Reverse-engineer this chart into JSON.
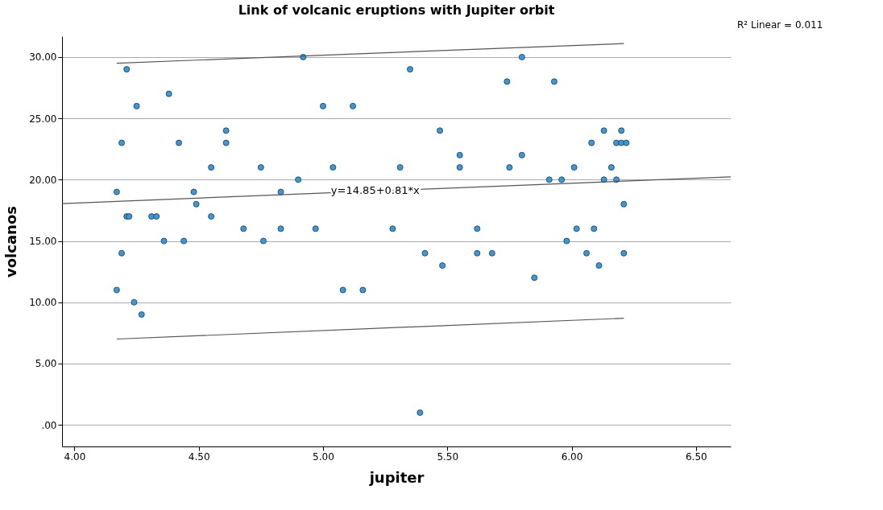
{
  "chart_data": {
    "type": "scatter",
    "title": "Link of volcanic eruptions with Jupiter orbit",
    "xlabel": "jupiter",
    "ylabel": "volcanos",
    "xlim": [
      3.95,
      6.64
    ],
    "ylim": [
      -1.76,
      31.7
    ],
    "xticks": [
      {
        "value": 4,
        "label": "4.00"
      },
      {
        "value": 4.5,
        "label": "4.50"
      },
      {
        "value": 5,
        "label": "5.00"
      },
      {
        "value": 5.5,
        "label": "5.50"
      },
      {
        "value": 6,
        "label": "6.00"
      },
      {
        "value": 6.5,
        "label": "6.50"
      }
    ],
    "yticks": [
      {
        "value": 0,
        "label": ".00"
      },
      {
        "value": 5,
        "label": "5.00"
      },
      {
        "value": 10,
        "label": "10.00"
      },
      {
        "value": 15,
        "label": "15.00"
      },
      {
        "value": 20,
        "label": "20.00"
      },
      {
        "value": 25,
        "label": "25.00"
      },
      {
        "value": 30,
        "label": "30.00"
      }
    ],
    "grid": "y",
    "marker": "circle",
    "series": [
      {
        "color": "#3a9ad9",
        "x": [
          4.17,
          4.17,
          4.19,
          4.19,
          4.21,
          4.21,
          4.22,
          4.24,
          4.25,
          4.27,
          4.31,
          4.33,
          4.36,
          4.38,
          4.42,
          4.44,
          4.48,
          4.49,
          4.55,
          4.55,
          4.61,
          4.61,
          4.68,
          4.75,
          4.76,
          4.83,
          4.83,
          4.9,
          4.92,
          4.97,
          5.0,
          5.04,
          5.08,
          5.12,
          5.16,
          5.28,
          5.31,
          5.35,
          5.39,
          5.41,
          5.47,
          5.48,
          5.55,
          5.55,
          5.62,
          5.62,
          5.68,
          5.74,
          5.75,
          5.8,
          5.8,
          5.85,
          5.91,
          5.93,
          5.96,
          5.98,
          6.01,
          6.02,
          6.06,
          6.08,
          6.09,
          6.11,
          6.13,
          6.13,
          6.16,
          6.18,
          6.18,
          6.2,
          6.2,
          6.21,
          6.21,
          6.22
        ],
        "values": [
          11,
          19,
          23,
          14,
          29,
          17,
          17,
          10,
          26,
          9,
          17,
          17,
          15,
          27,
          23,
          15,
          19,
          18,
          21,
          17,
          24,
          23,
          16,
          21,
          15,
          19,
          16,
          20,
          30,
          16,
          26,
          21,
          11,
          26,
          11,
          16,
          21,
          29,
          1,
          14,
          24,
          13,
          22,
          21,
          16,
          14,
          14,
          28,
          21,
          30,
          22,
          12,
          20,
          28,
          20,
          15,
          21,
          16,
          14,
          23,
          16,
          13,
          20,
          24,
          21,
          20,
          23,
          24,
          23,
          18,
          14,
          23
        ]
      },
      {
        "type": "line",
        "color": "#555555",
        "line_style": "solid",
        "marker": "none",
        "x": [
          3.95,
          6.64
        ],
        "values": [
          18.05,
          20.23
        ]
      },
      {
        "type": "line",
        "color": "#555555",
        "line_style": "solid",
        "marker": "none",
        "x": [
          4.17,
          6.21
        ],
        "values": [
          29.5,
          31.1
        ]
      },
      {
        "type": "line",
        "color": "#555555",
        "line_style": "solid",
        "marker": "none",
        "x": [
          4.17,
          6.21
        ],
        "values": [
          7.0,
          8.7
        ]
      }
    ],
    "annotations": [
      "R² Linear = 0.011",
      {
        "text": "y=14.85+0.81*x",
        "x": 5.21,
        "y": 19.1
      }
    ]
  }
}
